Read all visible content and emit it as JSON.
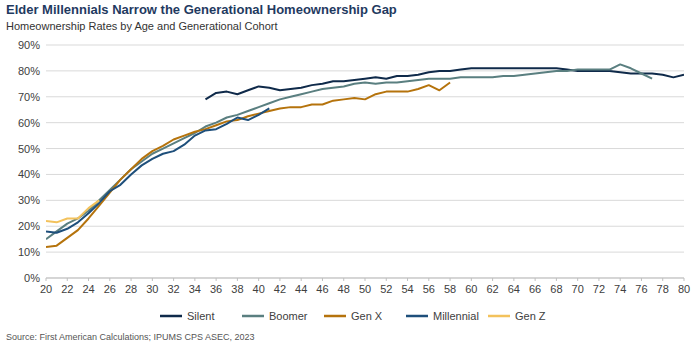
{
  "chart_data": {
    "type": "line",
    "title": "Elder Millennials Narrow the Generational Homeownership Gap",
    "subtitle": "Homeownership Rates by Age and Generational Cohort",
    "source": "Source: First American Calculations; IPUMS CPS ASEC, 2023",
    "x": [
      20,
      21,
      22,
      23,
      24,
      25,
      26,
      27,
      28,
      29,
      30,
      31,
      32,
      33,
      34,
      35,
      36,
      37,
      38,
      39,
      40,
      41,
      42,
      43,
      44,
      45,
      46,
      47,
      48,
      49,
      50,
      51,
      52,
      53,
      54,
      55,
      56,
      57,
      58,
      59,
      60,
      61,
      62,
      63,
      64,
      65,
      66,
      67,
      68,
      69,
      70,
      71,
      72,
      73,
      74,
      75,
      76,
      77,
      78,
      79,
      80
    ],
    "xlim": [
      20,
      80
    ],
    "xticks": [
      20,
      22,
      24,
      26,
      28,
      30,
      32,
      34,
      36,
      38,
      40,
      42,
      44,
      46,
      48,
      50,
      52,
      54,
      56,
      58,
      60,
      62,
      64,
      66,
      68,
      70,
      72,
      74,
      76,
      78,
      80
    ],
    "ylim": [
      0,
      90
    ],
    "yticks": [
      {
        "value": 0,
        "label": "0%"
      },
      {
        "value": 10,
        "label": "10%"
      },
      {
        "value": 20,
        "label": "20%"
      },
      {
        "value": 30,
        "label": "30%"
      },
      {
        "value": 40,
        "label": "40%"
      },
      {
        "value": 50,
        "label": "50%"
      },
      {
        "value": 60,
        "label": "60%"
      },
      {
        "value": 70,
        "label": "70%"
      },
      {
        "value": 80,
        "label": "80%"
      },
      {
        "value": 90,
        "label": "90%"
      }
    ],
    "grid": true,
    "legend": "bottom",
    "series": [
      {
        "name": "Silent",
        "color": "#0f2a4a",
        "values": [
          null,
          null,
          null,
          null,
          null,
          null,
          null,
          null,
          null,
          null,
          null,
          null,
          null,
          null,
          null,
          69,
          71.5,
          72,
          71,
          72.5,
          74,
          73.5,
          72.5,
          73,
          73.5,
          74.5,
          75,
          76,
          76,
          76.5,
          77,
          77.5,
          77,
          78,
          78,
          78.5,
          79.5,
          80,
          80,
          80.5,
          81,
          81,
          81,
          81,
          81,
          81,
          81,
          81,
          81,
          80.5,
          80,
          80,
          80,
          80,
          79.5,
          79,
          79,
          79,
          78.5,
          77.5,
          78.5
        ]
      },
      {
        "name": "Boomer",
        "color": "#5a7f80",
        "values": [
          15,
          18,
          21,
          23,
          26,
          30,
          34,
          38,
          42,
          45,
          48,
          50,
          52,
          54,
          56,
          58.5,
          60,
          62,
          63,
          64.5,
          66,
          67.5,
          69,
          70,
          71,
          72,
          73,
          73.5,
          74,
          75,
          75.5,
          75,
          75.5,
          75.5,
          76,
          76.5,
          77,
          77,
          77,
          77.5,
          77.5,
          77.5,
          77.5,
          78,
          78,
          78.5,
          79,
          79.5,
          80,
          80,
          80.5,
          80.5,
          80.5,
          80.5,
          82.5,
          81,
          79,
          77,
          null,
          null,
          null
        ]
      },
      {
        "name": "Gen X",
        "color": "#b5730c",
        "values": [
          12,
          12.5,
          15.5,
          18.5,
          23,
          28,
          33,
          38,
          42,
          46,
          49,
          51,
          53.5,
          55,
          56.5,
          57.5,
          59,
          60.5,
          61,
          62.5,
          63.5,
          64.5,
          65.5,
          66,
          66,
          67,
          67,
          68.5,
          69,
          69.5,
          69,
          71,
          72,
          72,
          72,
          73,
          74.5,
          72.5,
          75.5,
          null,
          null,
          null,
          null,
          null,
          null,
          null,
          null,
          null,
          null,
          null,
          null,
          null,
          null,
          null,
          null,
          null,
          null,
          null,
          null,
          null,
          null
        ]
      },
      {
        "name": "Millennial",
        "color": "#1e4f7b",
        "values": [
          18,
          17.5,
          19,
          21.5,
          25,
          29,
          33.5,
          36,
          40,
          43.5,
          46,
          48,
          49,
          51.5,
          55,
          57,
          57.5,
          59.5,
          62,
          61,
          63,
          65.5,
          null,
          null,
          null,
          null,
          null,
          null,
          null,
          null,
          null,
          null,
          null,
          null,
          null,
          null,
          null,
          null,
          null,
          null,
          null,
          null,
          null,
          null,
          null,
          null,
          null,
          null,
          null,
          null,
          null,
          null,
          null,
          null,
          null,
          null,
          null,
          null,
          null,
          null,
          null
        ]
      },
      {
        "name": "Gen Z",
        "color": "#f3c25c",
        "values": [
          22,
          21.5,
          23,
          23,
          27,
          30,
          null,
          null,
          null,
          null,
          null,
          null,
          null,
          null,
          null,
          null,
          null,
          null,
          null,
          null,
          null,
          null,
          null,
          null,
          null,
          null,
          null,
          null,
          null,
          null,
          null,
          null,
          null,
          null,
          null,
          null,
          null,
          null,
          null,
          null,
          null,
          null,
          null,
          null,
          null,
          null,
          null,
          null,
          null,
          null,
          null,
          null,
          null,
          null,
          null,
          null,
          null,
          null,
          null,
          null,
          null
        ]
      }
    ]
  }
}
